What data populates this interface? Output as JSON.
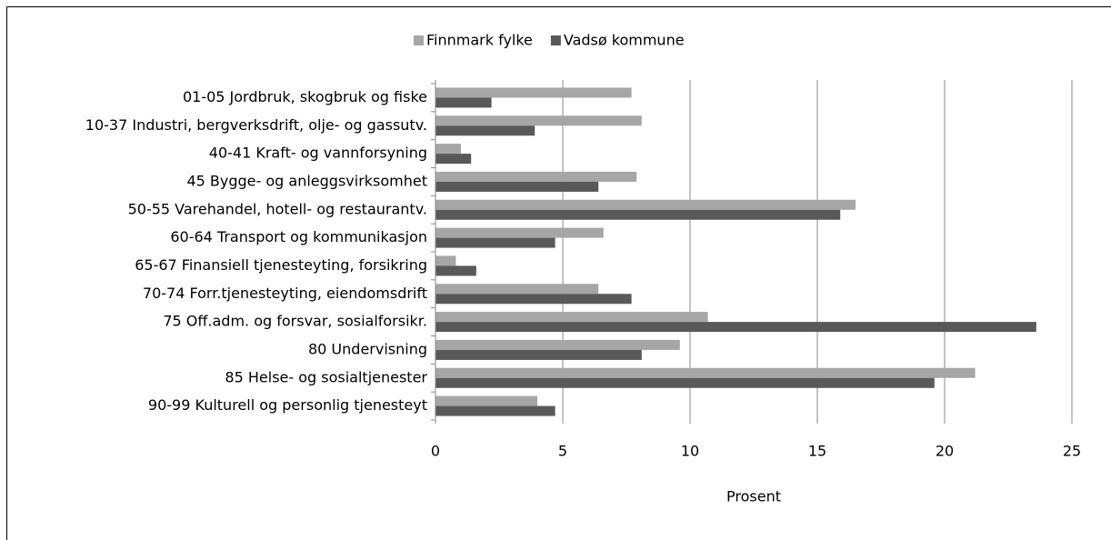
{
  "chart_data": {
    "type": "bar",
    "orientation": "horizontal",
    "categories": [
      "01-05 Jordbruk, skogbruk og fiske",
      "10-37 Industri, bergverksdrift, olje- og gassutv.",
      "40-41 Kraft- og vannforsyning",
      "45 Bygge- og anleggsvirksomhet",
      "50-55 Varehandel, hotell- og restaurantv.",
      "60-64 Transport og kommunikasjon",
      "65-67 Finansiell tjenesteyting, forsikring",
      "70-74 Forr.tjenesteyting, eiendomsdrift",
      "75 Off.adm. og forsvar, sosialforsikr.",
      "80 Undervisning",
      "85 Helse- og sosialtjenester",
      "90-99 Kulturell og personlig tjenesteyt"
    ],
    "series": [
      {
        "name": "Finnmark fylke",
        "color": "#a6a6a6",
        "values": [
          7.7,
          8.1,
          1.0,
          7.9,
          16.5,
          6.6,
          0.8,
          6.4,
          10.7,
          9.6,
          21.2,
          4.0
        ]
      },
      {
        "name": "Vadsø kommune",
        "color": "#595959",
        "values": [
          2.2,
          3.9,
          1.4,
          6.4,
          15.9,
          4.7,
          1.6,
          7.7,
          23.6,
          8.1,
          19.6,
          4.7
        ]
      }
    ],
    "xlabel": "Prosent",
    "xlim": [
      0,
      25
    ],
    "xticks": [
      0,
      5,
      10,
      15,
      20,
      25
    ],
    "grid": true,
    "legend": "top"
  }
}
